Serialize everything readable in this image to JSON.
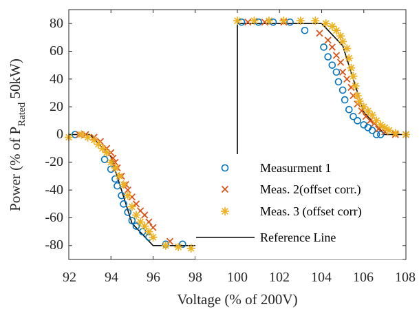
{
  "chart_data": {
    "type": "scatter",
    "xlabel": "Voltage (% of 200V)",
    "ylabel": {
      "prefix": "Power (% of P",
      "subscript": "Rated",
      "suffix": " 50kW)"
    },
    "xlim": [
      92,
      108
    ],
    "ylim": [
      -90,
      90
    ],
    "xticks": [
      "92",
      "94",
      "96",
      "98",
      "100",
      "102",
      "104",
      "106",
      "108"
    ],
    "yticks": [
      "80",
      "60",
      "40",
      "20",
      "0",
      "-20",
      "-40",
      "-60",
      "-80"
    ],
    "grid": false,
    "legend_position": "lower-right",
    "colors": {
      "meas1": "#0072BD",
      "meas2": "#D95319",
      "meas3": "#EDB120",
      "reference": "#000000"
    },
    "series": [
      {
        "name": "Measurment 1",
        "marker": "circle",
        "color": "#0072BD",
        "points": [
          [
            92.3,
            0
          ],
          [
            93.7,
            -18
          ],
          [
            94.0,
            -25
          ],
          [
            94.2,
            -32
          ],
          [
            94.3,
            -37
          ],
          [
            94.5,
            -44
          ],
          [
            94.6,
            -50
          ],
          [
            94.8,
            -56
          ],
          [
            95.0,
            -62
          ],
          [
            95.2,
            -66
          ],
          [
            95.5,
            -70
          ],
          [
            95.8,
            -74
          ],
          [
            96.6,
            -79
          ],
          [
            97.4,
            -79
          ],
          [
            98.2,
            -79
          ],
          [
            99.0,
            -79
          ],
          [
            99.8,
            -80
          ],
          [
            100.2,
            81
          ],
          [
            101.0,
            81
          ],
          [
            101.7,
            81
          ],
          [
            102.5,
            81
          ],
          [
            103.2,
            75
          ],
          [
            104.1,
            63
          ],
          [
            104.3,
            56
          ],
          [
            104.5,
            50
          ],
          [
            104.7,
            45
          ],
          [
            104.8,
            38
          ],
          [
            105.0,
            32
          ],
          [
            105.1,
            25
          ],
          [
            105.3,
            18
          ],
          [
            105.5,
            13
          ],
          [
            105.7,
            10
          ],
          [
            106.0,
            7
          ],
          [
            106.2,
            5
          ],
          [
            106.4,
            3
          ],
          [
            106.6,
            0
          ],
          [
            106.8,
            0
          ]
        ]
      },
      {
        "name": "Meas. 2(offset corr.)",
        "marker": "cross",
        "color": "#D95319",
        "points": [
          [
            92.5,
            0
          ],
          [
            92.8,
            0
          ],
          [
            93.2,
            -2
          ],
          [
            93.5,
            -5
          ],
          [
            93.8,
            -10
          ],
          [
            94.0,
            -13
          ],
          [
            94.1,
            -17
          ],
          [
            94.2,
            -20
          ],
          [
            94.3,
            -24
          ],
          [
            94.5,
            -30
          ],
          [
            94.7,
            -36
          ],
          [
            94.8,
            -40
          ],
          [
            95.0,
            -45
          ],
          [
            95.2,
            -50
          ],
          [
            95.4,
            -55
          ],
          [
            95.6,
            -58
          ],
          [
            95.8,
            -63
          ],
          [
            96.0,
            -67
          ],
          [
            96.8,
            -77
          ],
          [
            98.2,
            -80
          ],
          [
            99.2,
            -80
          ],
          [
            100.0,
            -80
          ],
          [
            100.5,
            81
          ],
          [
            101.3,
            81
          ],
          [
            102.2,
            81
          ],
          [
            103.9,
            73
          ],
          [
            104.3,
            68
          ],
          [
            104.5,
            63
          ],
          [
            104.7,
            57
          ],
          [
            104.9,
            52
          ],
          [
            105.0,
            45
          ],
          [
            105.2,
            40
          ],
          [
            105.4,
            34
          ],
          [
            105.5,
            28
          ],
          [
            105.7,
            22
          ],
          [
            105.9,
            17
          ],
          [
            106.1,
            13
          ],
          [
            106.3,
            10
          ],
          [
            106.5,
            8
          ],
          [
            106.7,
            4
          ],
          [
            107.0,
            2
          ],
          [
            107.5,
            0
          ],
          [
            108.0,
            0
          ]
        ]
      },
      {
        "name": "Meas. 3 (offset corr)",
        "marker": "star",
        "color": "#EDB120",
        "points": [
          [
            92.0,
            -2
          ],
          [
            92.6,
            0
          ],
          [
            92.9,
            -2
          ],
          [
            93.2,
            -4
          ],
          [
            93.4,
            -7
          ],
          [
            93.6,
            -10
          ],
          [
            93.8,
            -13
          ],
          [
            94.0,
            -20
          ],
          [
            94.2,
            -24
          ],
          [
            94.4,
            -30
          ],
          [
            94.6,
            -36
          ],
          [
            94.8,
            -44
          ],
          [
            95.0,
            -52
          ],
          [
            95.2,
            -58
          ],
          [
            95.4,
            -63
          ],
          [
            95.6,
            -66
          ],
          [
            95.8,
            -70
          ],
          [
            96.0,
            -74
          ],
          [
            96.6,
            -80
          ],
          [
            97.2,
            -81
          ],
          [
            97.8,
            -82
          ],
          [
            98.5,
            -81
          ],
          [
            99.2,
            -82
          ],
          [
            99.8,
            -82
          ],
          [
            100.0,
            82
          ],
          [
            100.8,
            82
          ],
          [
            101.5,
            82
          ],
          [
            102.2,
            82
          ],
          [
            103.0,
            82
          ],
          [
            103.7,
            82
          ],
          [
            104.2,
            80
          ],
          [
            104.5,
            78
          ],
          [
            104.7,
            75
          ],
          [
            104.9,
            71
          ],
          [
            105.0,
            67
          ],
          [
            105.2,
            62
          ],
          [
            105.3,
            55
          ],
          [
            105.4,
            48
          ],
          [
            105.5,
            42
          ],
          [
            105.6,
            35
          ],
          [
            105.7,
            28
          ],
          [
            105.8,
            24
          ],
          [
            106.0,
            20
          ],
          [
            106.2,
            17
          ],
          [
            106.4,
            14
          ],
          [
            106.6,
            10
          ],
          [
            106.8,
            7
          ],
          [
            107.0,
            5
          ],
          [
            107.2,
            3
          ],
          [
            107.5,
            1
          ],
          [
            108.0,
            0
          ]
        ]
      },
      {
        "name": "Reference Line",
        "type": "line",
        "color": "#000000",
        "points": [
          [
            92.0,
            0
          ],
          [
            93.0,
            0
          ],
          [
            94.0,
            -16
          ],
          [
            95.0,
            -64
          ],
          [
            96.0,
            -80
          ],
          [
            100.0,
            -80
          ],
          [
            100.0,
            80
          ],
          [
            104.0,
            80
          ],
          [
            105.0,
            64
          ],
          [
            106.0,
            16
          ],
          [
            107.0,
            0
          ],
          [
            108.0,
            0
          ]
        ]
      }
    ]
  }
}
